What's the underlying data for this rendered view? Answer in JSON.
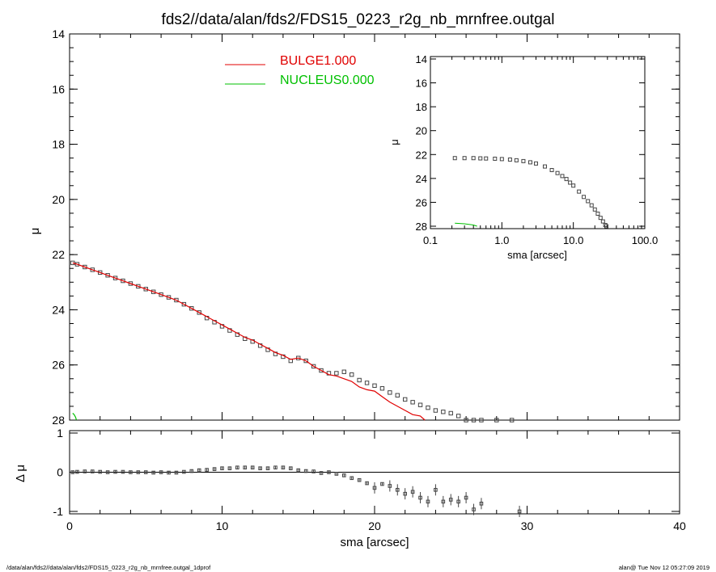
{
  "title": "fds2//data/alan/fds2/FDS15_0223_r2g_nb_mrnfree.outgal",
  "footer": {
    "left": "/data/alan/fds2//data/alan/fds2/FDS15_0223_r2g_nb_mrnfree.outgal_1dprof",
    "right": "alan@  Tue Nov 12 05:27:09 2019"
  },
  "colors": {
    "bulge": "#e00000",
    "nucleus": "#00c000",
    "data": "#444444",
    "axes": "#000000"
  },
  "chart_data": [
    {
      "panel": "main",
      "type": "scatter",
      "xlabel": "",
      "ylabel": "μ",
      "xlim": [
        0,
        40
      ],
      "ylim": [
        28,
        14
      ],
      "y_inverted": true,
      "yticks": [
        14,
        16,
        18,
        20,
        22,
        24,
        26,
        28
      ],
      "legend": {
        "placement": "top-center",
        "entries": [
          {
            "name": "BULGE",
            "value": "1.000",
            "color": "#e00000"
          },
          {
            "name": "NUCLEUS",
            "value": "0.000",
            "color": "#00c000"
          }
        ]
      },
      "series": [
        {
          "name": "data",
          "style": "open-square-markers",
          "x": [
            0.2,
            0.5,
            1.0,
            1.5,
            2.0,
            2.5,
            3.0,
            3.5,
            4.0,
            4.5,
            5.0,
            5.5,
            6.0,
            6.5,
            7.0,
            7.5,
            8.0,
            8.5,
            9.0,
            9.5,
            10.0,
            10.5,
            11.0,
            11.5,
            12.0,
            12.5,
            13.0,
            13.5,
            14.0,
            14.5,
            15.0,
            15.5,
            16.0,
            16.5,
            17.0,
            17.5,
            18.0,
            18.5,
            19.0,
            19.5,
            20.0,
            20.5,
            21.0,
            21.5,
            22.0,
            22.5,
            23.0,
            23.5,
            24.0,
            24.5,
            25.0,
            25.5,
            26.0,
            26.5,
            27.0,
            28.0,
            29.0
          ],
          "y": [
            22.3,
            22.35,
            22.45,
            22.55,
            22.65,
            22.75,
            22.85,
            22.95,
            23.05,
            23.15,
            23.25,
            23.35,
            23.45,
            23.55,
            23.65,
            23.8,
            23.95,
            24.1,
            24.3,
            24.45,
            24.6,
            24.75,
            24.9,
            25.05,
            25.15,
            25.3,
            25.45,
            25.6,
            25.7,
            25.85,
            25.75,
            25.85,
            26.05,
            26.2,
            26.3,
            26.3,
            26.25,
            26.35,
            26.55,
            26.65,
            26.75,
            26.85,
            27.0,
            27.1,
            27.25,
            27.35,
            27.45,
            27.55,
            27.65,
            27.7,
            27.75,
            27.85,
            28.0,
            28.0,
            28.0,
            28.0,
            28.0
          ]
        },
        {
          "name": "BULGE",
          "style": "line",
          "color": "#e00000",
          "x": [
            0.2,
            0.5,
            1.0,
            1.5,
            2.0,
            2.5,
            3.0,
            3.5,
            4.0,
            4.5,
            5.0,
            5.5,
            6.0,
            6.5,
            7.0,
            7.5,
            8.0,
            8.5,
            9.0,
            9.5,
            10.0,
            10.5,
            11.0,
            11.5,
            12.0,
            12.5,
            13.0,
            13.5,
            14.0,
            14.5,
            15.0,
            15.5,
            16.0,
            16.5,
            17.0,
            17.5,
            18.0,
            18.5,
            19.0,
            19.5,
            20.0,
            20.5,
            21.0,
            21.5,
            22.0,
            22.5,
            23.0,
            23.3
          ],
          "y": [
            22.3,
            22.35,
            22.45,
            22.55,
            22.65,
            22.75,
            22.85,
            22.95,
            23.05,
            23.15,
            23.25,
            23.35,
            23.45,
            23.55,
            23.65,
            23.8,
            23.95,
            24.1,
            24.25,
            24.4,
            24.55,
            24.7,
            24.85,
            25.0,
            25.1,
            25.25,
            25.4,
            25.55,
            25.65,
            25.8,
            25.75,
            25.85,
            26.05,
            26.2,
            26.35,
            26.4,
            26.5,
            26.6,
            26.8,
            26.9,
            26.95,
            27.15,
            27.35,
            27.5,
            27.65,
            27.8,
            27.85,
            28.0
          ]
        },
        {
          "name": "NUCLEUS",
          "style": "line",
          "color": "#00c000",
          "x": [
            0.2,
            0.3,
            0.4,
            0.45
          ],
          "y": [
            27.75,
            27.8,
            27.9,
            28.0
          ]
        }
      ]
    },
    {
      "panel": "residual",
      "type": "scatter",
      "xlabel": "sma [arcsec]",
      "ylabel": "Δ μ",
      "xlim": [
        0,
        40
      ],
      "ylim": [
        -1,
        1
      ],
      "xticks": [
        0,
        10,
        20,
        30,
        40
      ],
      "yticks": [
        -1,
        0,
        1
      ],
      "reference_line": 0,
      "series": [
        {
          "name": "residual",
          "style": "open-square-markers-with-errorbars",
          "x": [
            0.2,
            0.5,
            1.0,
            1.5,
            2.0,
            2.5,
            3.0,
            3.5,
            4.0,
            4.5,
            5.0,
            5.5,
            6.0,
            6.5,
            7.0,
            7.5,
            8.0,
            8.5,
            9.0,
            9.5,
            10.0,
            10.5,
            11.0,
            11.5,
            12.0,
            12.5,
            13.0,
            13.5,
            14.0,
            14.5,
            15.0,
            15.5,
            16.0,
            16.5,
            17.0,
            17.5,
            18.0,
            18.5,
            19.0,
            19.5,
            20.0,
            20.5,
            21.0,
            21.5,
            22.0,
            22.5,
            23.0,
            23.5,
            24.0,
            24.5,
            25.0,
            25.5,
            26.0,
            26.5,
            27.0,
            29.5
          ],
          "y": [
            0.0,
            0.01,
            0.02,
            0.02,
            0.01,
            0.0,
            0.01,
            0.01,
            0.0,
            0.0,
            0.0,
            -0.01,
            0.0,
            -0.01,
            -0.01,
            0.01,
            0.03,
            0.05,
            0.06,
            0.08,
            0.1,
            0.1,
            0.12,
            0.12,
            0.12,
            0.1,
            0.1,
            0.12,
            0.12,
            0.1,
            0.05,
            0.03,
            0.02,
            -0.02,
            0.0,
            -0.04,
            -0.08,
            -0.15,
            -0.2,
            -0.28,
            -0.4,
            -0.3,
            -0.35,
            -0.45,
            -0.55,
            -0.5,
            -0.65,
            -0.75,
            -0.45,
            -0.75,
            -0.7,
            -0.75,
            -0.65,
            -0.95,
            -0.8,
            -1.0
          ]
        }
      ]
    },
    {
      "panel": "inset",
      "type": "scatter",
      "xlabel": "sma [arcsec]",
      "ylabel": "μ",
      "x_scale": "log",
      "xlim": [
        0.1,
        100
      ],
      "ylim": [
        28,
        14
      ],
      "y_inverted": true,
      "xtick_labels": [
        "0.1",
        "1.0",
        "10.0",
        "100.0"
      ],
      "xtick_values": [
        0.1,
        1,
        10,
        100
      ],
      "yticks": [
        14,
        16,
        18,
        20,
        22,
        24,
        26,
        28
      ],
      "series": [
        {
          "name": "data",
          "style": "open-square-markers",
          "x": [
            0.22,
            0.3,
            0.4,
            0.5,
            0.6,
            0.8,
            1.0,
            1.3,
            1.6,
            2.0,
            2.5,
            3.0,
            4.0,
            5.0,
            6.0,
            7.0,
            8.0,
            9.0,
            10.0,
            12.0,
            14.0,
            16.0,
            18.0,
            20.0,
            22.0,
            24.0,
            26.0,
            28.0,
            29.0
          ],
          "y": [
            22.3,
            22.3,
            22.3,
            22.32,
            22.33,
            22.35,
            22.38,
            22.42,
            22.48,
            22.55,
            22.65,
            22.75,
            23.0,
            23.3,
            23.55,
            23.8,
            24.05,
            24.35,
            24.6,
            25.1,
            25.55,
            25.9,
            26.25,
            26.6,
            26.95,
            27.3,
            27.6,
            27.9,
            28.0
          ]
        },
        {
          "name": "NUCLEUS",
          "style": "line",
          "color": "#00c000",
          "x": [
            0.22,
            0.3,
            0.4,
            0.45
          ],
          "y": [
            27.75,
            27.8,
            27.9,
            28.0
          ]
        }
      ]
    }
  ]
}
